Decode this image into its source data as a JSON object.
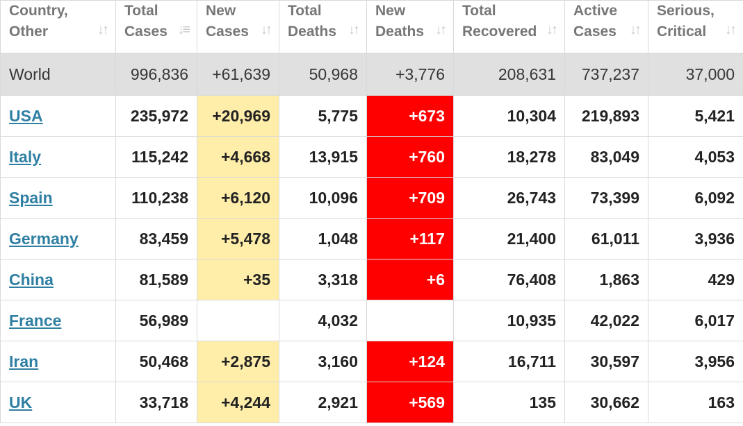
{
  "headers": [
    {
      "line1": "Country,",
      "line2": "Other"
    },
    {
      "line1": "Total",
      "line2": "Cases"
    },
    {
      "line1": "New",
      "line2": "Cases"
    },
    {
      "line1": "Total",
      "line2": "Deaths"
    },
    {
      "line1": "New",
      "line2": "Deaths"
    },
    {
      "line1": "Total",
      "line2": "Recovered"
    },
    {
      "line1": "Active",
      "line2": "Cases"
    },
    {
      "line1": "Serious,",
      "line2": "Critical"
    }
  ],
  "sort_icons": {
    "default": "sort-arrows-icon",
    "active": "sort-descending-icon",
    "active_column": 1
  },
  "world": {
    "name": "World",
    "total_cases": "996,836",
    "new_cases": "+61,639",
    "total_deaths": "50,968",
    "new_deaths": "+3,776",
    "total_recovered": "208,631",
    "active_cases": "737,237",
    "serious_critical": "37,000"
  },
  "rows": [
    {
      "name": "USA",
      "total_cases": "235,972",
      "new_cases": "+20,969",
      "total_deaths": "5,775",
      "new_deaths": "+673",
      "total_recovered": "10,304",
      "active_cases": "219,893",
      "serious_critical": "5,421"
    },
    {
      "name": "Italy",
      "total_cases": "115,242",
      "new_cases": "+4,668",
      "total_deaths": "13,915",
      "new_deaths": "+760",
      "total_recovered": "18,278",
      "active_cases": "83,049",
      "serious_critical": "4,053"
    },
    {
      "name": "Spain",
      "total_cases": "110,238",
      "new_cases": "+6,120",
      "total_deaths": "10,096",
      "new_deaths": "+709",
      "total_recovered": "26,743",
      "active_cases": "73,399",
      "serious_critical": "6,092"
    },
    {
      "name": "Germany",
      "total_cases": "83,459",
      "new_cases": "+5,478",
      "total_deaths": "1,048",
      "new_deaths": "+117",
      "total_recovered": "21,400",
      "active_cases": "61,011",
      "serious_critical": "3,936"
    },
    {
      "name": "China",
      "total_cases": "81,589",
      "new_cases": "+35",
      "total_deaths": "3,318",
      "new_deaths": "+6",
      "total_recovered": "76,408",
      "active_cases": "1,863",
      "serious_critical": "429"
    },
    {
      "name": "France",
      "total_cases": "56,989",
      "new_cases": "",
      "total_deaths": "4,032",
      "new_deaths": "",
      "total_recovered": "10,935",
      "active_cases": "42,022",
      "serious_critical": "6,017"
    },
    {
      "name": "Iran",
      "total_cases": "50,468",
      "new_cases": "+2,875",
      "total_deaths": "3,160",
      "new_deaths": "+124",
      "total_recovered": "16,711",
      "active_cases": "30,597",
      "serious_critical": "3,956"
    },
    {
      "name": "UK",
      "total_cases": "33,718",
      "new_cases": "+4,244",
      "total_deaths": "2,921",
      "new_deaths": "+569",
      "total_recovered": "135",
      "active_cases": "30,662",
      "serious_critical": "163"
    }
  ],
  "colors": {
    "new_cases_highlight": "#ffeeaa",
    "new_deaths_highlight": "#ff0000",
    "world_row_bg": "#e0e0e0",
    "country_link": "#2f7fa3",
    "header_text": "#777777"
  }
}
